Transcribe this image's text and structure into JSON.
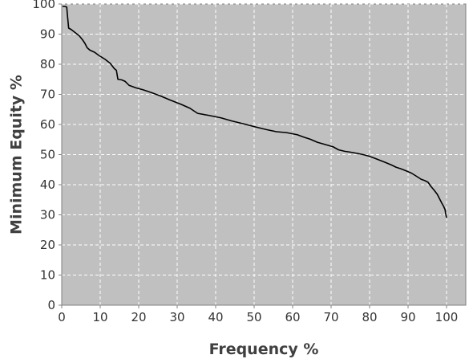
{
  "chart_data": {
    "type": "line",
    "title": "",
    "xlabel": "Frequency %",
    "ylabel": "Minimum Equity %",
    "xlim": [
      0,
      105
    ],
    "ylim": [
      0,
      100
    ],
    "x_ticks": [
      "0",
      "10",
      "20",
      "30",
      "40",
      "50",
      "60",
      "70",
      "80",
      "90",
      "100"
    ],
    "y_ticks": [
      "0",
      "10",
      "20",
      "30",
      "40",
      "50",
      "60",
      "70",
      "80",
      "90",
      "100"
    ],
    "grid": true,
    "legend": "none",
    "colors": {
      "plot_background": "#c0c0c0",
      "grid": "#ffffff",
      "line": "#000000",
      "axis_text": "#333333"
    },
    "series": [
      {
        "x": [
          0.2,
          0.8,
          1.3,
          1.5,
          1.8,
          2.5,
          3.5,
          4.5,
          5.3,
          6.0,
          6.6,
          7.3,
          8.5,
          9.8,
          11.2,
          12.6,
          13.7,
          14.2,
          14.6,
          15.6,
          16.5,
          17.5,
          19.2,
          21.2,
          23.5,
          25.8,
          28.2,
          31.0,
          33.3,
          35.3,
          38.3,
          41.4,
          44.1,
          47.3,
          50.3,
          53.2,
          55.8,
          58.4,
          61.2,
          62.9,
          64.6,
          66.4,
          68.6,
          70.5,
          71.9,
          73.5,
          75.1,
          76.8,
          78.3,
          79.8,
          81.1,
          82.5,
          84.1,
          85.6,
          86.9,
          88.1,
          89.5,
          90.8,
          92.2,
          93.4,
          94.3,
          95.2,
          95.9,
          96.7,
          97.6,
          98.2,
          98.8,
          99.2,
          99.6,
          99.8,
          100.0
        ],
        "values": [
          99.2,
          99.2,
          99.0,
          96.0,
          92.0,
          91.5,
          90.5,
          89.5,
          88.3,
          87.0,
          85.5,
          84.7,
          84.0,
          82.8,
          81.7,
          80.3,
          78.5,
          78.0,
          75.0,
          74.8,
          74.3,
          73.0,
          72.2,
          71.5,
          70.5,
          69.4,
          68.1,
          66.7,
          65.4,
          63.7,
          63.0,
          62.2,
          61.2,
          60.2,
          59.2,
          58.3,
          57.6,
          57.3,
          56.6,
          55.8,
          55.1,
          54.1,
          53.3,
          52.6,
          51.6,
          51.1,
          50.8,
          50.4,
          50.0,
          49.5,
          48.9,
          48.2,
          47.4,
          46.6,
          45.8,
          45.3,
          44.6,
          43.9,
          42.8,
          41.8,
          41.4,
          40.8,
          39.5,
          38.3,
          36.8,
          35.3,
          33.8,
          32.9,
          31.8,
          30.2,
          29.0
        ]
      }
    ]
  }
}
